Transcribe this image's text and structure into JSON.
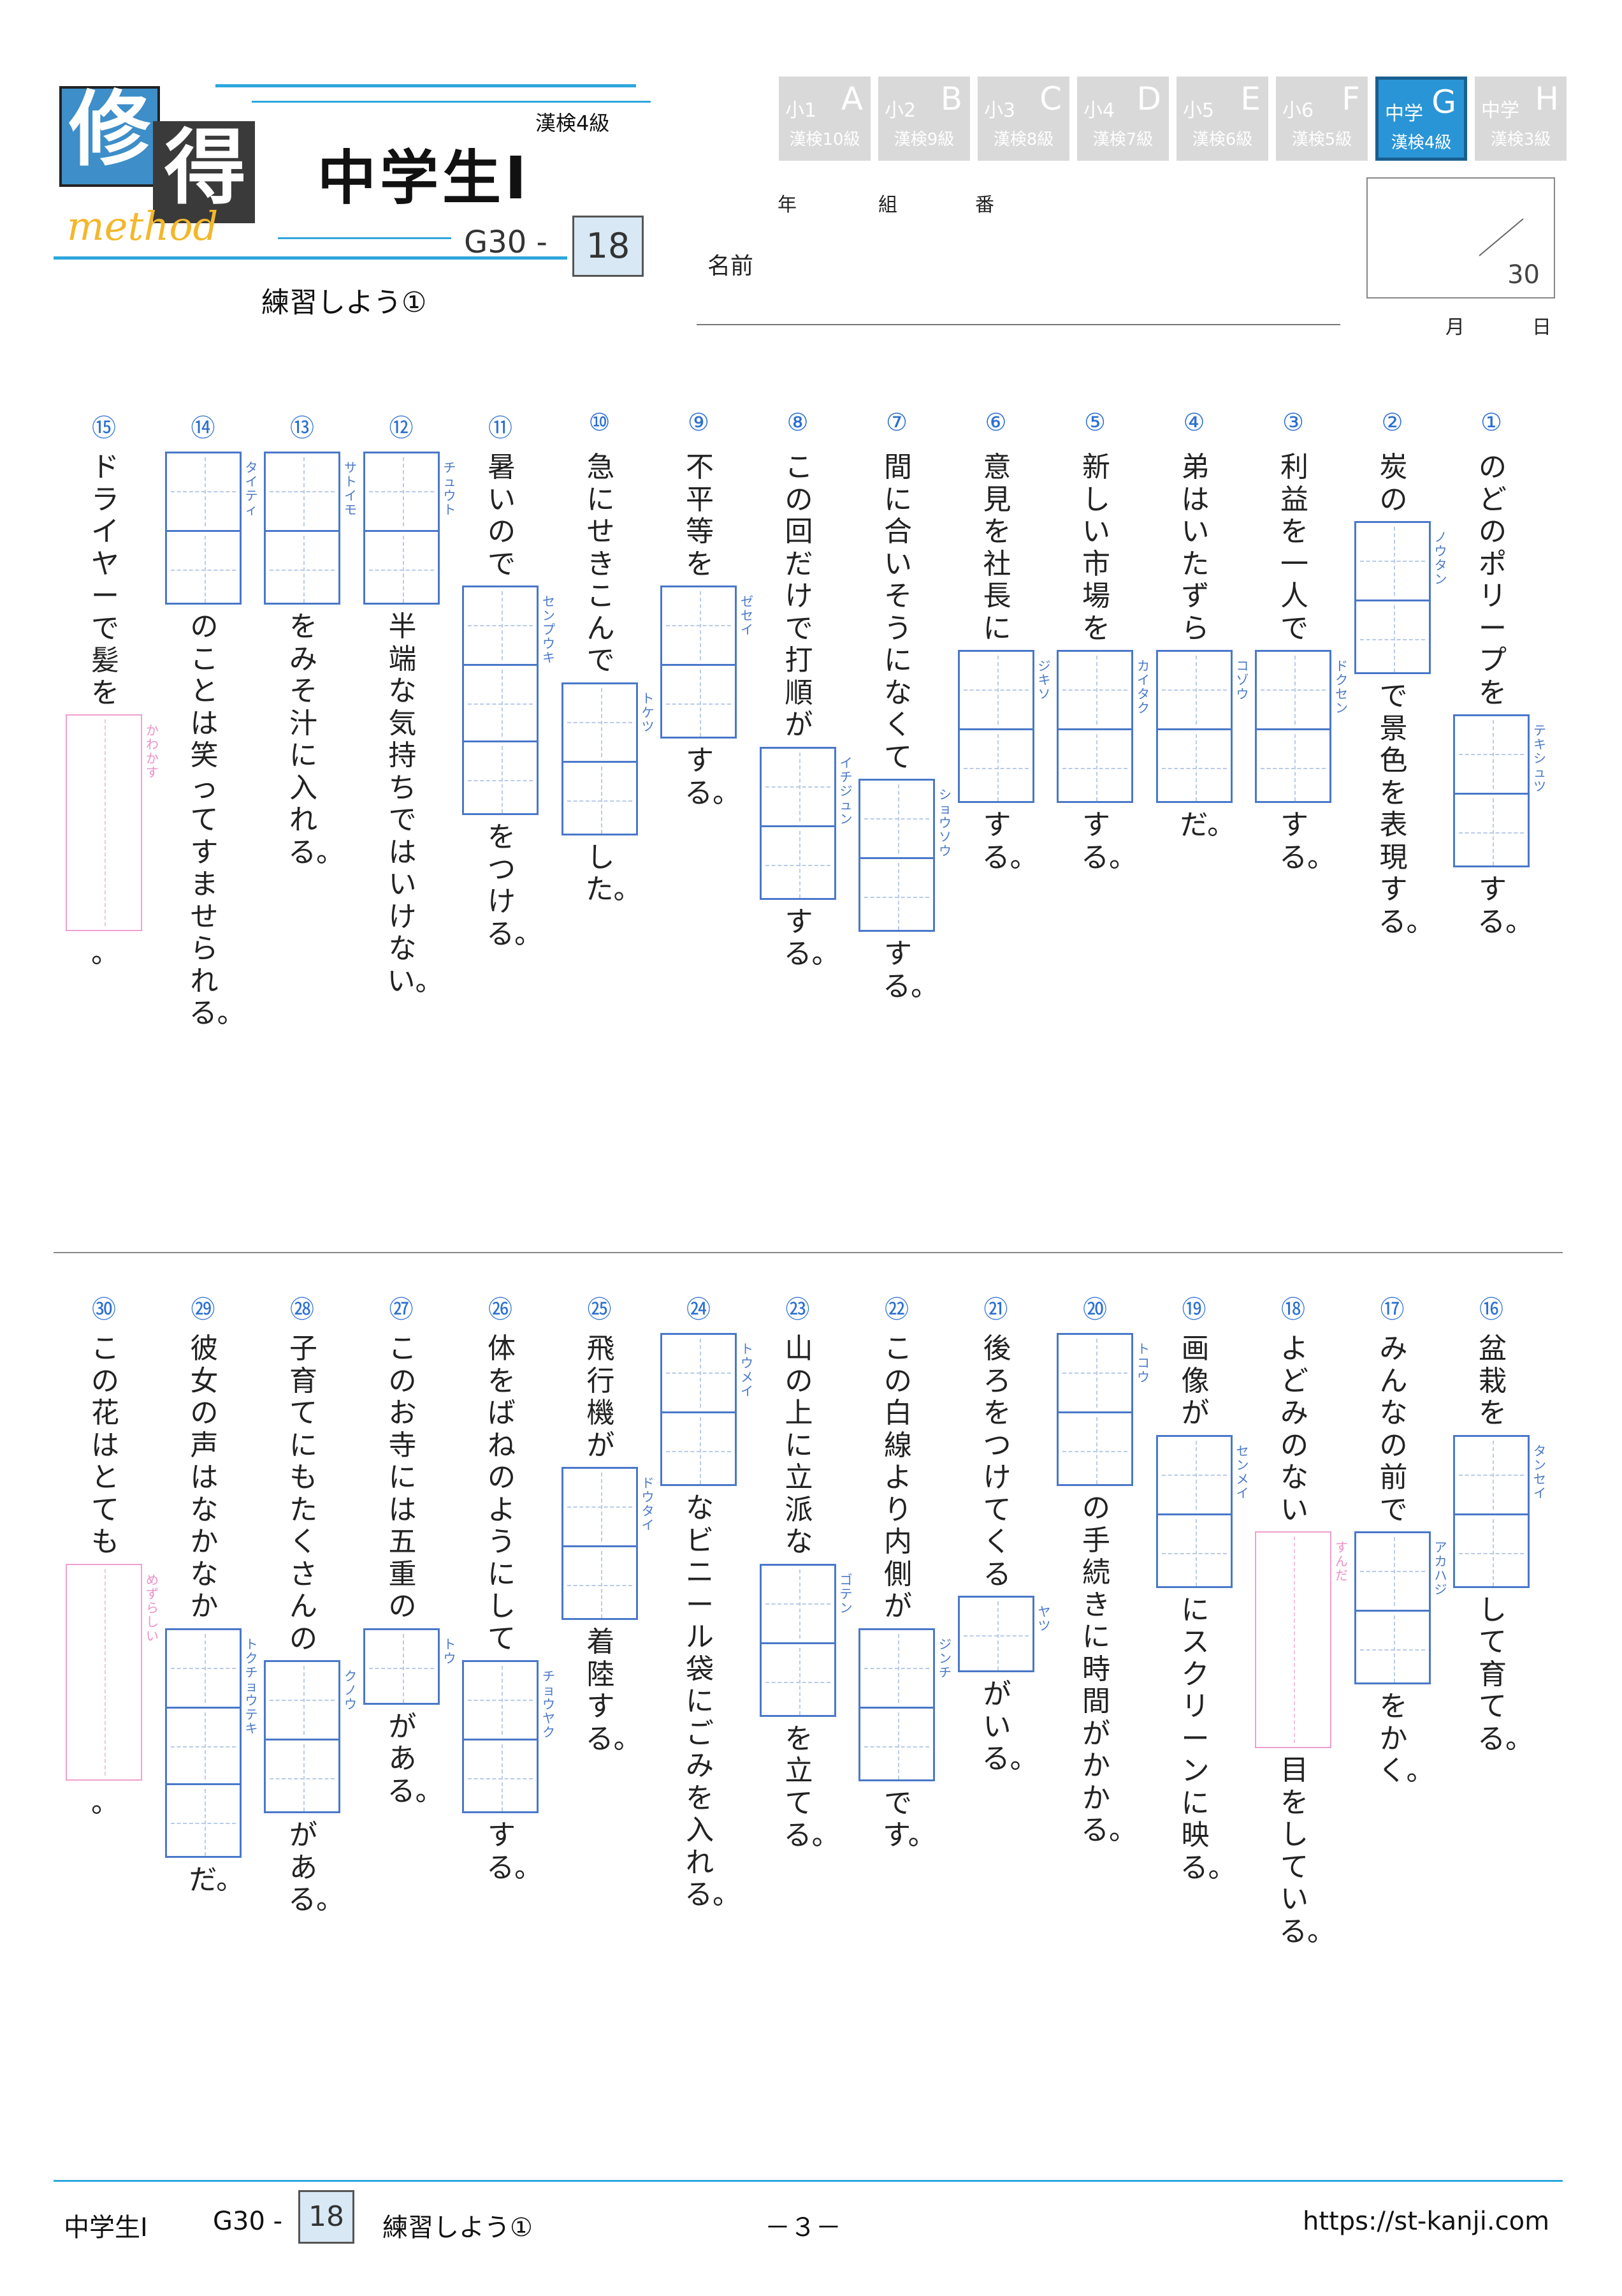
{
  "header": {
    "logo_main": "修",
    "logo_sub": "得",
    "logo_word": "method",
    "title": "中学生Ⅰ",
    "kanken_level": "漢検4級",
    "code": "G30 -",
    "number": "18",
    "subtitle": "練習しよう①",
    "year_label": "年",
    "class_label": "組",
    "number_label": "番",
    "name_label": "名前",
    "score_total": "30",
    "month_label": "月",
    "day_label": "日"
  },
  "levels": [
    {
      "grade": "小1",
      "letter": "A",
      "kanken": "漢検10級"
    },
    {
      "grade": "小2",
      "letter": "B",
      "kanken": "漢検9級"
    },
    {
      "grade": "小3",
      "letter": "C",
      "kanken": "漢検8級"
    },
    {
      "grade": "小4",
      "letter": "D",
      "kanken": "漢検7級"
    },
    {
      "grade": "小5",
      "letter": "E",
      "kanken": "漢検6級"
    },
    {
      "grade": "小6",
      "letter": "F",
      "kanken": "漢検5級"
    },
    {
      "grade": "中学",
      "letter": "G",
      "kanken": "漢検4級",
      "active": true
    },
    {
      "grade": "中学",
      "letter": "H",
      "kanken": "漢検3級"
    }
  ],
  "questions": [
    {
      "n": "①",
      "before": "のどのポリープを",
      "ruby": "テキシュツ",
      "after": "する。",
      "cells": 2
    },
    {
      "n": "②",
      "before": "炭の",
      "ruby": "ノウタン",
      "after": "で景色を表現する。",
      "cells": 2
    },
    {
      "n": "③",
      "before": "利益を一人で",
      "ruby": "ドクセン",
      "after": "する。",
      "cells": 2
    },
    {
      "n": "④",
      "before": "弟はいたずら",
      "ruby": "コゾウ",
      "after": "だ。",
      "cells": 2
    },
    {
      "n": "⑤",
      "before": "新しい市場を",
      "ruby": "カイタク",
      "after": "する。",
      "cells": 2
    },
    {
      "n": "⑥",
      "before": "意見を社長に",
      "ruby": "ジキソ",
      "after": "する。",
      "cells": 2
    },
    {
      "n": "⑦",
      "before": "間に合いそうになくて",
      "ruby": "ショウソウ",
      "after": "する。",
      "cells": 2
    },
    {
      "n": "⑧",
      "before": "この回だけで打順が",
      "ruby": "イチジュン",
      "after": "する。",
      "cells": 2
    },
    {
      "n": "⑨",
      "before": "不平等を",
      "ruby": "ゼセイ",
      "after": "する。",
      "cells": 2
    },
    {
      "n": "⑩",
      "before": "急にせきこんで",
      "ruby": "トケツ",
      "after": "した。",
      "cells": 2
    },
    {
      "n": "⑪",
      "before": "暑いので",
      "ruby": "センプウキ",
      "after": "をつける。",
      "cells": 3
    },
    {
      "n": "⑫",
      "before": "",
      "ruby": "チュウト",
      "after": "半端な気持ちではいけない。",
      "cells": 2
    },
    {
      "n": "⑬",
      "before": "",
      "ruby": "サトイモ",
      "after": "をみそ汁に入れる。",
      "cells": 2
    },
    {
      "n": "⑭",
      "before": "",
      "ruby": "タイティ",
      "after": "のことは笑ってすませられる。",
      "cells": 2
    },
    {
      "n": "⑮",
      "before": "ドライヤーで髪を",
      "ruby": "かわかす",
      "after": "。",
      "cells": 1,
      "pink": true
    },
    {
      "n": "⑯",
      "before": "盆栽を",
      "ruby": "タンセイ",
      "after": "して育てる。",
      "cells": 2
    },
    {
      "n": "⑰",
      "before": "みんなの前で",
      "ruby": "アカハジ",
      "after": "をかく。",
      "cells": 2
    },
    {
      "n": "⑱",
      "before": "よどみのない",
      "ruby": "すんだ",
      "after": "目をしている。",
      "cells": 1,
      "pink": true
    },
    {
      "n": "⑲",
      "before": "画像が",
      "ruby": "センメイ",
      "after": "にスクリーンに映る。",
      "cells": 2
    },
    {
      "n": "⑳",
      "before": "",
      "ruby": "トコウ",
      "after": "の手続きに時間がかかる。",
      "cells": 2
    },
    {
      "n": "㉑",
      "before": "後ろをつけてくる",
      "ruby": "ヤツ",
      "after": "がいる。",
      "cells": 1
    },
    {
      "n": "㉒",
      "before": "この白線より内側が",
      "ruby": "ジンチ",
      "after": "です。",
      "cells": 2
    },
    {
      "n": "㉓",
      "before": "山の上に立派な",
      "ruby": "ゴテン",
      "after": "を立てる。",
      "cells": 2
    },
    {
      "n": "㉔",
      "before": "",
      "ruby": "トウメイ",
      "after": "なビニール袋にごみを入れる。",
      "cells": 2
    },
    {
      "n": "㉕",
      "before": "飛行機が",
      "ruby": "ドウタイ",
      "after": "着陸する。",
      "cells": 2
    },
    {
      "n": "㉖",
      "before": "体をばねのようにして",
      "ruby": "チョウヤク",
      "after": "する。",
      "cells": 2
    },
    {
      "n": "㉗",
      "before": "このお寺には五重の",
      "ruby": "トウ",
      "after": "がある。",
      "cells": 1
    },
    {
      "n": "㉘",
      "before": "子育てにもたくさんの",
      "ruby": "クノウ",
      "after": "がある。",
      "cells": 2
    },
    {
      "n": "㉙",
      "before": "彼女の声はなかなか",
      "ruby": "トクチョウテキ",
      "after": "だ。",
      "cells": 3
    },
    {
      "n": "㉚",
      "before": "この花はとても",
      "ruby": "めずらしい",
      "after": "。",
      "cells": 1,
      "pink": true
    }
  ],
  "footer": {
    "title": "中学生Ⅰ",
    "code": "G30 -",
    "number": "18",
    "subtitle": "練習しよう①",
    "page": "－３－",
    "url": "https://st-kanji.com"
  }
}
